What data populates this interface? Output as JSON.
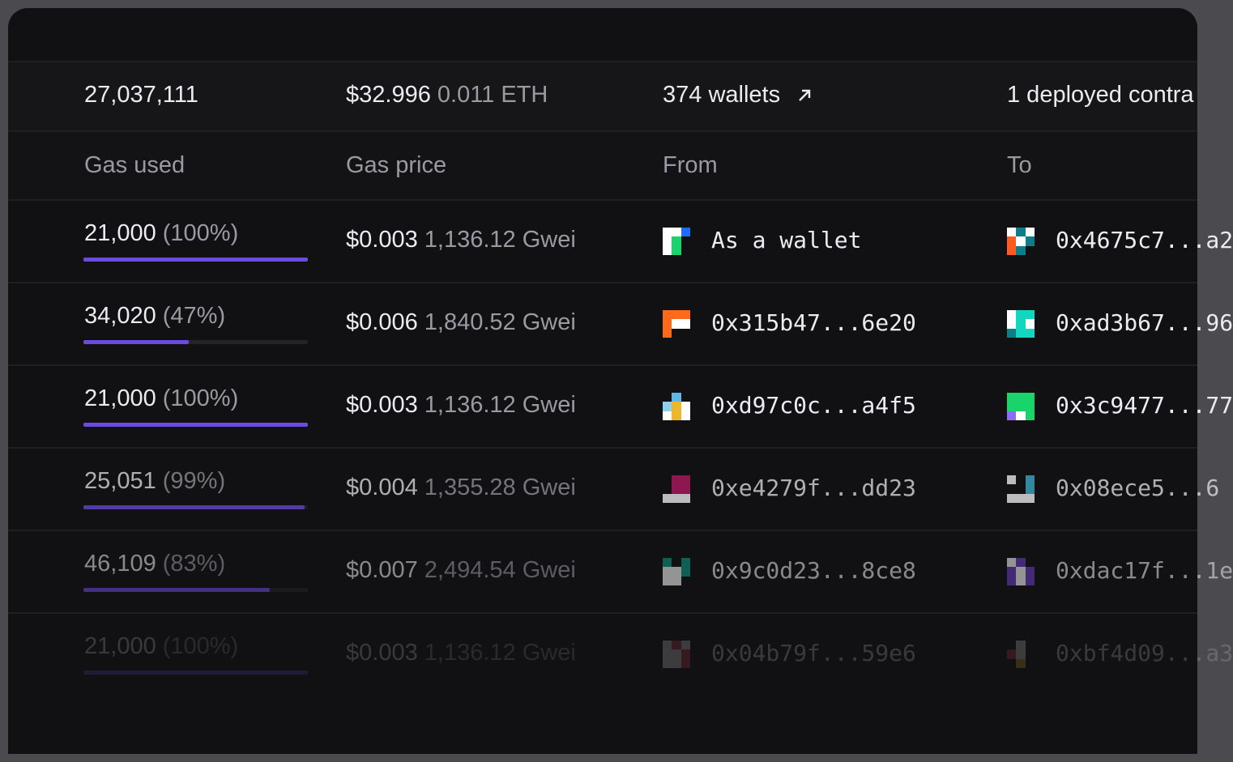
{
  "summary": {
    "gas_used": "27,037,111",
    "gas_price_usd": "$32.996",
    "gas_price_eth": "0.011 ETH",
    "from_wallets": "374 wallets",
    "to_label": "1 deployed contra"
  },
  "headers": {
    "gas_used": "Gas used",
    "gas_price": "Gas price",
    "from": "From",
    "to": "To"
  },
  "rows": [
    {
      "gas": "21,000",
      "pct": "(100%)",
      "fill": 1.0,
      "usd": "$0.003",
      "gwei": "1,136.12 Gwei",
      "from": "As a wallet",
      "to": "0x4675c7...a2",
      "from_colors": [
        "#ffffff",
        "#ffffff",
        "#1e6bff",
        "#ffffff",
        "#19d46b",
        "#111113",
        "#ffffff",
        "#19d46b",
        "#111113"
      ],
      "to_colors": [
        "#ffffff",
        "#0d7d8a",
        "#ffffff",
        "#ff5a1f",
        "#ffffff",
        "#0d7d8a",
        "#ff5a1f",
        "#0d7d8a",
        "#111113"
      ]
    },
    {
      "gas": "34,020",
      "pct": "(47%)",
      "fill": 0.47,
      "usd": "$0.006",
      "gwei": "1,840.52 Gwei",
      "from": "0x315b47...6e20",
      "to": "0xad3b67...96",
      "from_colors": [
        "#ff6a1a",
        "#ff6a1a",
        "#ff6a1a",
        "#ff6a1a",
        "#ffffff",
        "#ffffff",
        "#ff6a1a",
        "#111113",
        "#111113"
      ],
      "to_colors": [
        "#ffffff",
        "#12d6c0",
        "#12d6c0",
        "#ffffff",
        "#12d6c0",
        "#ffffff",
        "#0d7d8a",
        "#12d6c0",
        "#12d6c0"
      ]
    },
    {
      "gas": "21,000",
      "pct": "(100%)",
      "fill": 1.0,
      "usd": "$0.003",
      "gwei": "1,136.12 Gwei",
      "from": "0xd97c0c...a4f5",
      "to": "0x3c9477...77",
      "from_colors": [
        "#111113",
        "#5fb7e6",
        "#111113",
        "#8fd0f0",
        "#f0b62a",
        "#ffffff",
        "#ffffff",
        "#f0b62a",
        "#ffffff"
      ],
      "to_colors": [
        "#19d46b",
        "#19d46b",
        "#19d46b",
        "#19d46b",
        "#19d46b",
        "#19d46b",
        "#8b6cff",
        "#ffffff",
        "#19d46b"
      ]
    },
    {
      "gas": "25,051",
      "pct": "(99%)",
      "fill": 0.985,
      "usd": "$0.004",
      "gwei": "1,355.28 Gwei",
      "from": "0xe4279f...dd23",
      "to": "0x08ece5...6",
      "from_colors": [
        "#111113",
        "#c01a6a",
        "#c01a6a",
        "#111113",
        "#c01a6a",
        "#c01a6a",
        "#ffffff",
        "#ffffff",
        "#ffffff"
      ],
      "to_colors": [
        "#ffffff",
        "#111113",
        "#3fb6d6",
        "#111113",
        "#111113",
        "#3fb6d6",
        "#ffffff",
        "#ffffff",
        "#ffffff"
      ]
    },
    {
      "gas": "46,109",
      "pct": "(83%)",
      "fill": 0.83,
      "usd": "$0.007",
      "gwei": "2,494.54 Gwei",
      "from": "0x9c0d23...8ce8",
      "to": "0xdac17f...1e",
      "from_colors": [
        "#0fa08a",
        "#111113",
        "#0fa08a",
        "#ffffff",
        "#ffffff",
        "#0fa08a",
        "#ffffff",
        "#ffffff",
        "#111113"
      ],
      "to_colors": [
        "#ffffff",
        "#6a3fc8",
        "#111113",
        "#6a3fc8",
        "#ffffff",
        "#6a3fc8",
        "#6a3fc8",
        "#ffffff",
        "#6a3fc8"
      ]
    },
    {
      "gas": "21,000",
      "pct": "(100%)",
      "fill": 1.0,
      "usd": "$0.003",
      "gwei": "1,136.12 Gwei",
      "from": "0x04b79f...59e6",
      "to": "0xbf4d09...a3",
      "from_colors": [
        "#ffffff",
        "#e0405a",
        "#ffffff",
        "#ffffff",
        "#ffffff",
        "#e0405a",
        "#ffffff",
        "#ffffff",
        "#e0405a"
      ],
      "to_colors": [
        "#111113",
        "#ffffff",
        "#111113",
        "#e0405a",
        "#ffffff",
        "#111113",
        "#111113",
        "#f0b62a",
        "#111113"
      ]
    }
  ]
}
